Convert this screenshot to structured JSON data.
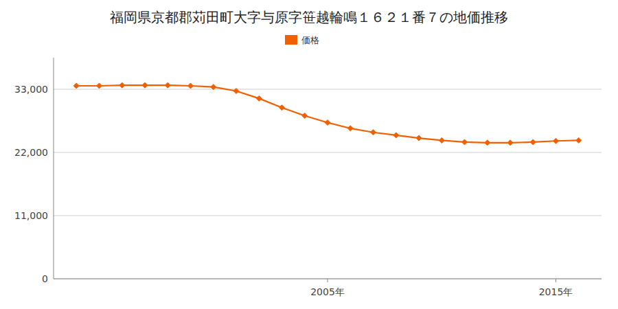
{
  "chart_data": {
    "type": "line",
    "title": "福岡県京都郡苅田町大字与原字笹越輪鳴１６２１番７の地価推移",
    "x": [
      1994,
      1995,
      1996,
      1997,
      1998,
      1999,
      2000,
      2001,
      2002,
      2003,
      2004,
      2005,
      2006,
      2007,
      2008,
      2009,
      2010,
      2011,
      2012,
      2013,
      2014,
      2015,
      2016
    ],
    "series": [
      {
        "name": "価格",
        "color": "#f06000",
        "values": [
          33600,
          33600,
          33700,
          33700,
          33700,
          33600,
          33400,
          32700,
          31400,
          29800,
          28400,
          27200,
          26200,
          25500,
          25000,
          24500,
          24100,
          23800,
          23700,
          23700,
          23800,
          24000,
          24100
        ]
      }
    ],
    "marker": "diamond",
    "line_style": "solid",
    "xlim": [
      1993,
      2017
    ],
    "xticks": [
      {
        "value": 2005,
        "label": "2005年"
      },
      {
        "value": 2015,
        "label": "2015年"
      }
    ],
    "ylim": [
      0,
      38500
    ],
    "yticks": [
      0,
      {
        "value": 11000,
        "label": "11,000"
      },
      {
        "value": 22000,
        "label": "22,000"
      },
      {
        "value": 33000,
        "label": "33,000"
      }
    ],
    "grid": true,
    "legend": "top"
  }
}
